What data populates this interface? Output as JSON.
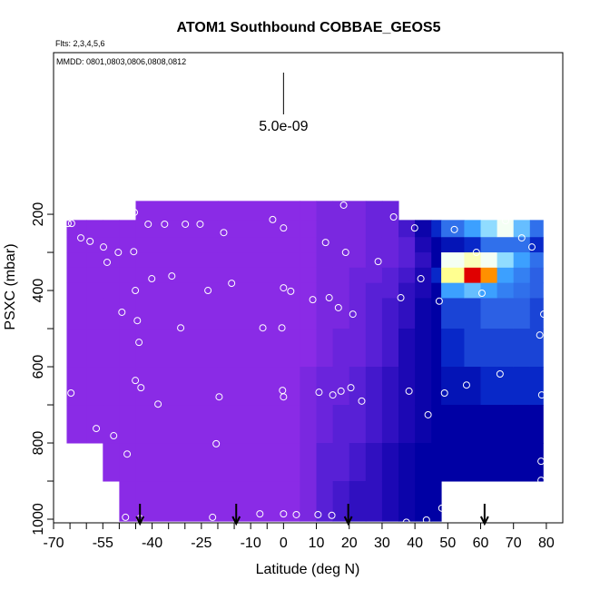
{
  "chart_data": {
    "type": "heatmap",
    "title": "ATOM1 Southbound COBBAE_GEOS5",
    "subtitle": "Flts: 2,3,4,5,6",
    "annotation": "MMDD: 0801,0803,0806,0808,0812",
    "x_label": "Latitude (deg N)",
    "y_label": "PSXC (mbar)",
    "xlim": [
      -70,
      85
    ],
    "ylim": [
      1009.5,
      -224
    ],
    "xticks": [
      -70,
      -55,
      -40,
      -25,
      -10,
      0,
      10,
      20,
      30,
      40,
      50,
      60,
      70,
      80
    ],
    "xminor_ticks": [
      -65,
      -60,
      -50,
      -45,
      -35,
      -30,
      -20,
      -15,
      -5
    ],
    "yticks": [
      200,
      400,
      600,
      800,
      1000
    ],
    "yminor_ticks": [
      300,
      500,
      700,
      900
    ],
    "scale": {
      "value": 5e-09,
      "label": "5.0e-09"
    },
    "x_edges": [
      -66,
      -60,
      -55,
      -50,
      -45,
      -20,
      5,
      10,
      15,
      20,
      25,
      30,
      35,
      40,
      45,
      48,
      55,
      60,
      65,
      70,
      75,
      79
    ],
    "y_edges": [
      165,
      215,
      260,
      300,
      340,
      380,
      420,
      500,
      600,
      700,
      800,
      900,
      1005
    ],
    "values": [
      [
        null,
        2e-10,
        2e-10,
        2e-10,
        2e-10,
        2e-10,
        2e-10,
        2e-10,
        2e-10,
        2e-10,
        null,
        null
      ],
      [
        null,
        2e-10,
        2e-10,
        2e-10,
        2e-10,
        2e-10,
        2e-10,
        2e-10,
        2e-10,
        2e-10,
        null,
        null
      ],
      [
        null,
        2e-10,
        2e-10,
        2e-10,
        2e-10,
        2e-10,
        2e-10,
        2e-10,
        2e-10,
        2e-10,
        2e-10,
        null
      ],
      [
        null,
        2e-10,
        2e-10,
        2e-10,
        2e-10,
        2e-10,
        2e-10,
        2e-10,
        2e-10,
        2e-10,
        2e-10,
        2e-10
      ],
      [
        2e-10,
        2e-10,
        2e-10,
        2e-10,
        2e-10,
        2e-10,
        2e-10,
        2e-10,
        2e-10,
        2e-10,
        2e-10,
        2e-10
      ],
      [
        2e-10,
        2e-10,
        2e-10,
        2e-10,
        2e-10,
        2e-10,
        2e-10,
        2e-10,
        2e-10,
        2e-10,
        2e-10,
        2e-10
      ],
      [
        2e-10,
        2e-10,
        2e-10,
        2e-10,
        2e-10,
        2e-10,
        2e-10,
        2e-10,
        3e-10,
        3e-10,
        3e-10,
        3e-10
      ],
      [
        3e-10,
        3e-10,
        3e-10,
        3e-10,
        3e-10,
        3e-10,
        3e-10,
        3e-10,
        4e-10,
        4e-10,
        5e-10,
        5e-10
      ],
      [
        3e-10,
        3e-10,
        3e-10,
        3e-10,
        3e-10,
        3e-10,
        3e-10,
        4e-10,
        4e-10,
        5e-10,
        5e-10,
        6e-10
      ],
      [
        3e-10,
        3e-10,
        3e-10,
        3e-10,
        4e-10,
        4e-10,
        4e-10,
        4e-10,
        5e-10,
        5e-10,
        6e-10,
        7e-10
      ],
      [
        4e-10,
        4e-10,
        4e-10,
        4e-10,
        4e-10,
        5e-10,
        5e-10,
        5e-10,
        6e-10,
        6e-10,
        7e-10,
        7e-10
      ],
      [
        4e-10,
        4e-10,
        4e-10,
        4e-10,
        5e-10,
        5e-10,
        6e-10,
        6e-10,
        7e-10,
        7e-10,
        8e-10,
        8e-10
      ],
      [
        null,
        6e-10,
        5e-10,
        5e-10,
        6e-10,
        7e-10,
        7e-10,
        8e-10,
        8e-10,
        8e-10,
        9e-10,
        9e-10
      ],
      [
        null,
        9e-10,
        8e-10,
        7e-10,
        8e-10,
        8e-10,
        9e-10,
        9e-10,
        9e-10,
        9e-10,
        1e-09,
        1e-09
      ],
      [
        null,
        1.2e-09,
        1e-09,
        1e-09,
        1.2e-09,
        1e-09,
        1e-09,
        1e-09,
        1e-09,
        1e-09,
        1e-09,
        1e-09
      ],
      [
        null,
        1.5e-09,
        1.1e-09,
        2.5e-09,
        3e-09,
        1.8e-09,
        1.3e-09,
        1.2e-09,
        1.1e-09,
        1e-09,
        1e-09,
        null
      ],
      [
        null,
        1.8e-09,
        1.2e-09,
        2.8e-09,
        4.8e-09,
        2e-09,
        1.3e-09,
        1.3e-09,
        1.1e-09,
        1e-09,
        1e-09,
        null
      ],
      [
        null,
        2.2e-09,
        1.5e-09,
        2.5e-09,
        4e-09,
        1.8e-09,
        1.4e-09,
        1.3e-09,
        1.2e-09,
        1e-09,
        1e-09,
        null
      ],
      [
        null,
        2.5e-09,
        1.5e-09,
        2.2e-09,
        1.8e-09,
        1.6e-09,
        1.4e-09,
        1.3e-09,
        1.2e-09,
        1e-09,
        1e-09,
        null
      ],
      [
        null,
        2e-09,
        1.5e-09,
        1.8e-09,
        1.6e-09,
        1.5e-09,
        1.4e-09,
        1.3e-09,
        1.2e-09,
        1e-09,
        1e-09,
        null
      ],
      [
        null,
        1.5e-09,
        1.2e-09,
        1.5e-09,
        1.4e-09,
        1.4e-09,
        1.3e-09,
        1.3e-09,
        1.2e-09,
        1e-09,
        1e-09,
        null
      ]
    ],
    "colorscale": [
      {
        "value": 2e-10,
        "color": "#8a2be6"
      },
      {
        "value": 3e-10,
        "color": "#7a28e0"
      },
      {
        "value": 4e-10,
        "color": "#6a24dc"
      },
      {
        "value": 5e-10,
        "color": "#5820d6"
      },
      {
        "value": 6e-10,
        "color": "#4418cc"
      },
      {
        "value": 7e-10,
        "color": "#3010c0"
      },
      {
        "value": 8e-10,
        "color": "#1c08b4"
      },
      {
        "value": 9e-10,
        "color": "#0c04aa"
      },
      {
        "value": 1e-09,
        "color": "#0000a4"
      },
      {
        "value": 1.2e-09,
        "color": "#0828c8"
      },
      {
        "value": 1.4e-09,
        "color": "#2c60e4"
      },
      {
        "value": 1.8e-09,
        "color": "#3ca0ff"
      },
      {
        "value": 2.2e-09,
        "color": "#90dcff"
      },
      {
        "value": 2.5e-09,
        "color": "#f4fff4"
      },
      {
        "value": 3e-09,
        "color": "#ffff90"
      },
      {
        "value": 4e-09,
        "color": "#ff9000"
      },
      {
        "value": 4.8e-09,
        "color": "#e00000"
      }
    ],
    "points": {
      "color": "#ffffff",
      "x": [
        -65.6,
        -64.5,
        -61.7,
        -58.9,
        -54.8,
        -53.7,
        -50.3,
        -45.6,
        -45.4,
        -41.2,
        -36.2,
        -29.9,
        -25.4,
        -18.2,
        -3.3,
        0,
        18.3,
        33.5,
        12.8,
        18.9,
        39.9,
        52,
        58.7,
        67.6,
        72.5,
        75.6,
        28.8,
        41.8,
        -40.1,
        -34,
        -45.1,
        -23,
        -15.8,
        0,
        2.2,
        35.7,
        47.4,
        8.9,
        13.9,
        16.7,
        21.1,
        60.4,
        -49.2,
        -44.5,
        -31.3,
        -6.3,
        -0.5,
        -44,
        79.2,
        78,
        -45.1,
        -43.4,
        -64.7,
        -38.2,
        -19.6,
        -0.3,
        0,
        10.8,
        15,
        17.5,
        20.5,
        23.8,
        38.2,
        49,
        55.7,
        65.9,
        78.6,
        44,
        -57,
        -51.7,
        -47.6,
        -20.5,
        78.4,
        78.4,
        -52,
        -48.1,
        -43.7,
        -21.6,
        -7.2,
        0,
        3.9,
        10.5,
        14.7,
        37.4,
        43.5,
        48.2
      ],
      "y": [
        224,
        224,
        262,
        271,
        286,
        326,
        300,
        298,
        195,
        226,
        226,
        226,
        226,
        248,
        214,
        236,
        176,
        207,
        274,
        300,
        236,
        240,
        300,
        217,
        262,
        286,
        324,
        369,
        369,
        362,
        400,
        400,
        381,
        393,
        402,
        419,
        428,
        424,
        419,
        445,
        462,
        407,
        457,
        479,
        498,
        498,
        498,
        536,
        462,
        517,
        636,
        655,
        669,
        698,
        679,
        662,
        679,
        667,
        674,
        664,
        655,
        690,
        664,
        669,
        648,
        619,
        674,
        726,
        762,
        781,
        829,
        802,
        848,
        898,
        988,
        995,
        998,
        995,
        986,
        986,
        988,
        988,
        990,
        1008,
        1002,
        971
      ]
    },
    "arrows_x": [
      -43.7,
      -14.4,
      19.7,
      61.2
    ]
  }
}
